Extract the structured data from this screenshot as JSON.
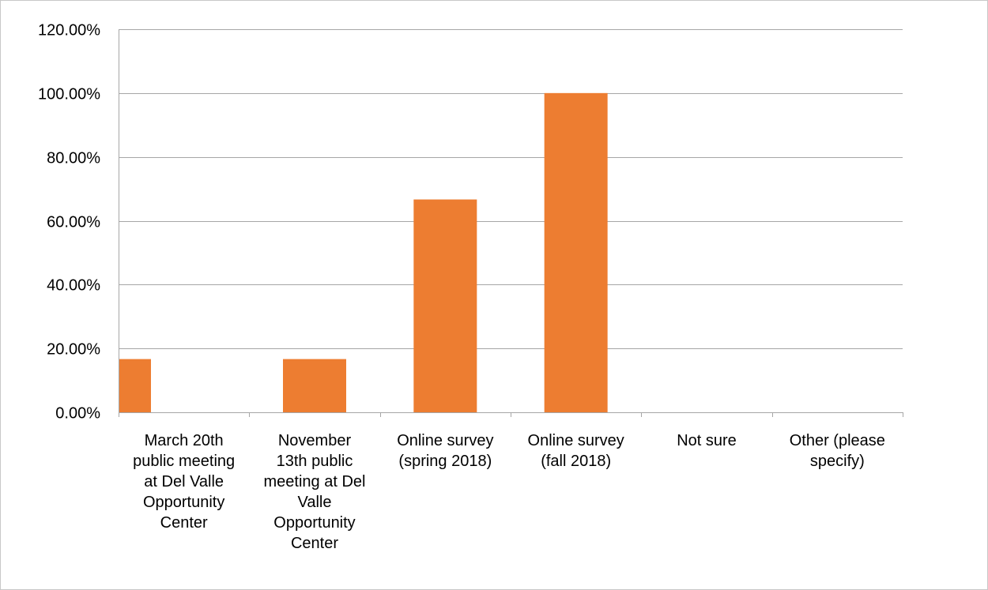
{
  "chart_data": {
    "type": "bar",
    "title": "",
    "xlabel": "",
    "ylabel": "",
    "categories": [
      "March 20th public meeting at Del Valle Opportunity Center",
      "November 13th public meeting at Del Valle Opportunity Center",
      "Online survey (spring 2018)",
      "Online survey (fall 2018)",
      "Not sure",
      "Other (please specify)"
    ],
    "category_lines": [
      [
        "March 20th",
        "public meeting",
        "at Del Valle",
        "Opportunity",
        "Center"
      ],
      [
        "November",
        "13th public",
        "meeting at Del",
        "Valle",
        "Opportunity",
        "Center"
      ],
      [
        "Online survey",
        "(spring 2018)"
      ],
      [
        "Online survey",
        "(fall 2018)"
      ],
      [
        "Not sure"
      ],
      [
        "Other (please",
        "specify)"
      ]
    ],
    "values": [
      16.67,
      16.67,
      66.67,
      100.0,
      0,
      0
    ],
    "ylim": [
      0,
      120
    ],
    "y_ticks": [
      0,
      20,
      40,
      60,
      80,
      100,
      120
    ],
    "y_tick_labels": [
      "0.00%",
      "20.00%",
      "40.00%",
      "60.00%",
      "80.00%",
      "100.00%",
      "120.00%"
    ],
    "grid": true,
    "legend": "none",
    "bar_color": "#ed7d31"
  }
}
